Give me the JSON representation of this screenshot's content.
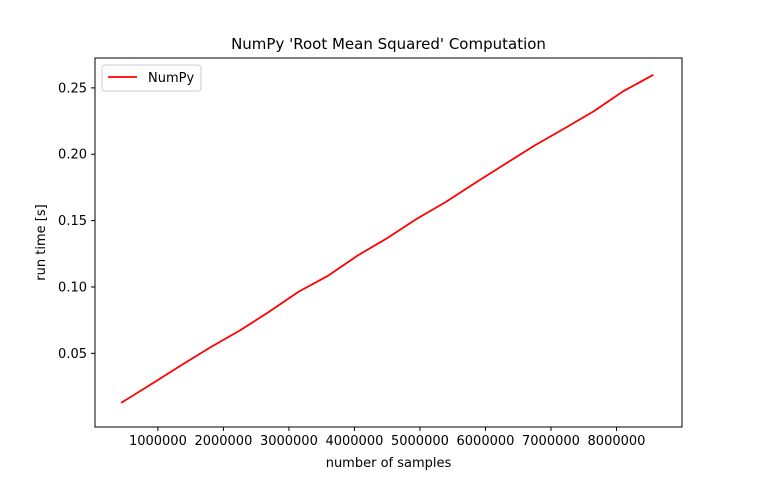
{
  "chart_data": {
    "type": "line",
    "title": "NumPy 'Root Mean Squared' Computation",
    "xlabel": "number of samples",
    "ylabel": "run time [s]",
    "xlim": [
      40000,
      9000000
    ],
    "ylim": [
      -0.0055,
      0.2725
    ],
    "x_ticks": [
      1000000,
      2000000,
      3000000,
      4000000,
      5000000,
      6000000,
      7000000,
      8000000
    ],
    "x_tick_labels": [
      "1000000",
      "2000000",
      "3000000",
      "4000000",
      "5000000",
      "6000000",
      "7000000",
      "8000000"
    ],
    "y_ticks": [
      0.05,
      0.1,
      0.15,
      0.2,
      0.25
    ],
    "y_tick_labels": [
      "0.05",
      "0.10",
      "0.15",
      "0.20",
      "0.25"
    ],
    "grid": false,
    "legend_position": "top-left",
    "series": [
      {
        "name": "NumPy",
        "color": "#ff0000",
        "x": [
          450000,
          900000,
          1350000,
          1800000,
          2250000,
          2700000,
          3150000,
          3600000,
          4050000,
          4500000,
          4950000,
          5400000,
          5850000,
          6300000,
          6750000,
          7200000,
          7650000,
          8100000,
          8550000
        ],
        "y": [
          0.013,
          0.0268,
          0.0408,
          0.0545,
          0.0672,
          0.0814,
          0.0965,
          0.1085,
          0.1237,
          0.1368,
          0.1513,
          0.1642,
          0.1786,
          0.1926,
          0.2066,
          0.2193,
          0.2323,
          0.2474,
          0.2595
        ]
      }
    ]
  }
}
